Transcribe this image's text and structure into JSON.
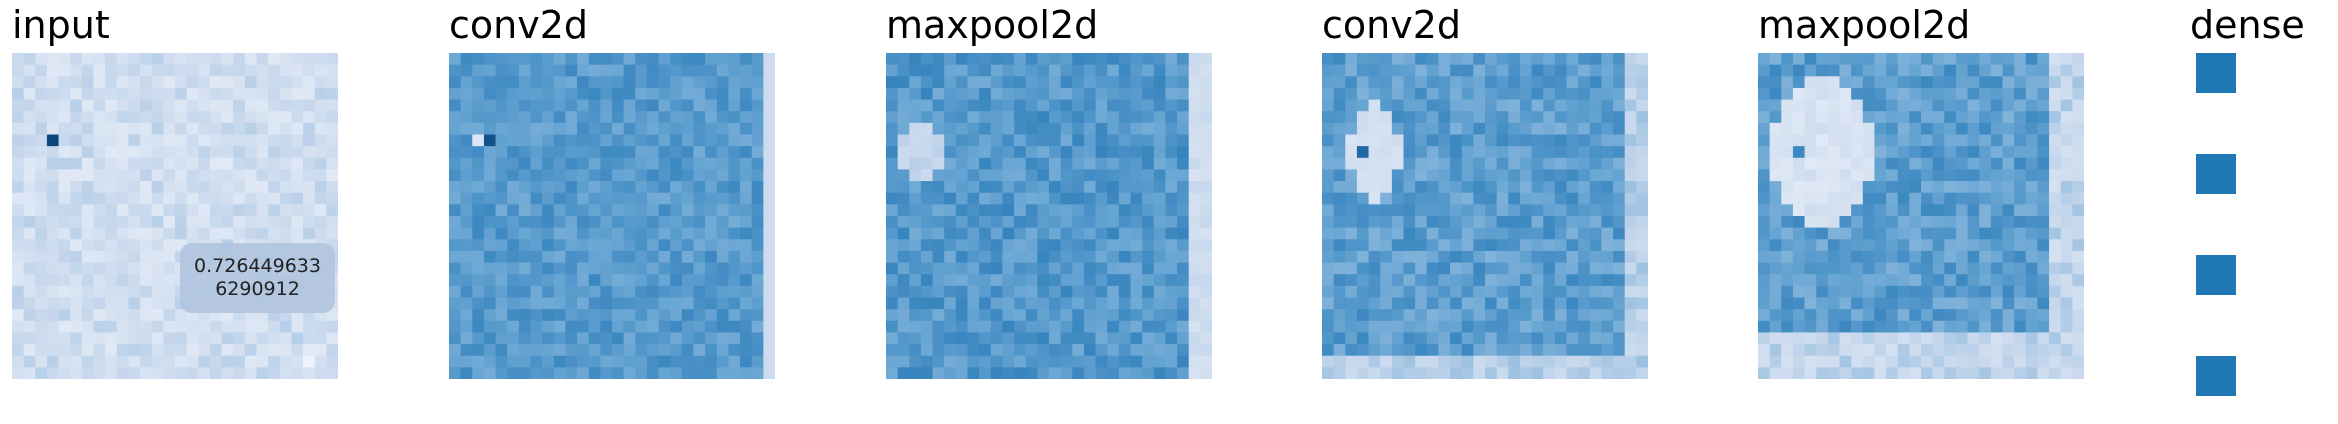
{
  "layers": [
    {
      "id": "input",
      "label": "input"
    },
    {
      "id": "conv2d-1",
      "label": "conv2d"
    },
    {
      "id": "maxpool2d-1",
      "label": "maxpool2d"
    },
    {
      "id": "conv2d-2",
      "label": "conv2d"
    },
    {
      "id": "maxpool2d-2",
      "label": "maxpool2d"
    },
    {
      "id": "dense",
      "label": "dense"
    }
  ],
  "tooltip": {
    "line1": "0.726449633",
    "line2": "6290912"
  },
  "dense": {
    "unit_count": 4
  },
  "colors": {
    "light": "#eef0f8",
    "mid": "#8fb0d6",
    "dark": "#0a3d6b",
    "dense": "#1f77b4",
    "tooltip_bg": "#b0c4de"
  }
}
